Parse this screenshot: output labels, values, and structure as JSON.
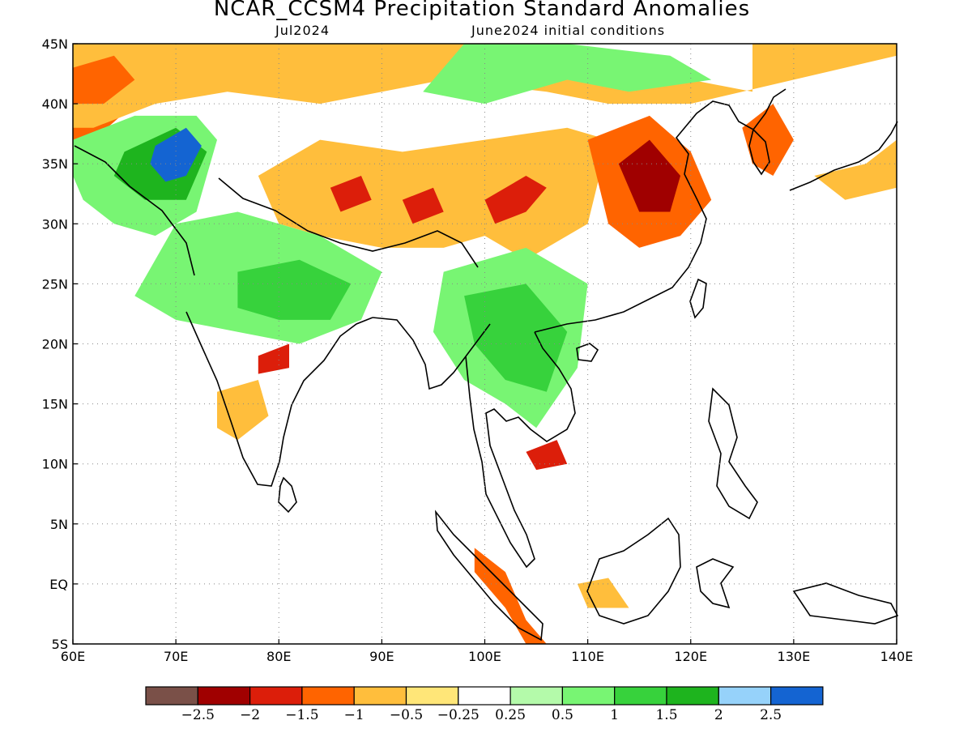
{
  "title": "NCAR_CCSM4 Precipitation Standard Anomalies",
  "subtitle_left": "Jul2024",
  "subtitle_right": "June2024 initial conditions",
  "map": {
    "lon_range": [
      60,
      140
    ],
    "lat_range": [
      -5,
      45
    ],
    "lon_ticks": [
      {
        "value": 60,
        "label": "60E"
      },
      {
        "value": 70,
        "label": "70E"
      },
      {
        "value": 80,
        "label": "80E"
      },
      {
        "value": 90,
        "label": "90E"
      },
      {
        "value": 100,
        "label": "100E"
      },
      {
        "value": 110,
        "label": "110E"
      },
      {
        "value": 120,
        "label": "120E"
      },
      {
        "value": 130,
        "label": "130E"
      },
      {
        "value": 140,
        "label": "140E"
      }
    ],
    "lat_ticks": [
      {
        "value": 45,
        "label": "45N"
      },
      {
        "value": 40,
        "label": "40N"
      },
      {
        "value": 35,
        "label": "35N"
      },
      {
        "value": 30,
        "label": "30N"
      },
      {
        "value": 25,
        "label": "25N"
      },
      {
        "value": 20,
        "label": "20N"
      },
      {
        "value": 15,
        "label": "15N"
      },
      {
        "value": 10,
        "label": "10N"
      },
      {
        "value": 5,
        "label": "5N"
      },
      {
        "value": 0,
        "label": "EQ"
      },
      {
        "value": -5,
        "label": "5S"
      }
    ],
    "grid": "dotted"
  },
  "colorbar": {
    "colors": [
      "#7a5048",
      "#a00000",
      "#dc1e0a",
      "#ff6400",
      "#ffbe3c",
      "#ffe678",
      "#ffffff",
      "#b4faaa",
      "#78f573",
      "#37d23c",
      "#1eb41e",
      "#96d2fa",
      "#1464d2"
    ],
    "labels": [
      "−2.5",
      "−2",
      "−1.5",
      "−1",
      "−0.5",
      "−0.25",
      "0.25",
      "0.5",
      "1",
      "1.5",
      "2",
      "2.5"
    ]
  },
  "anomaly_regions": [
    {
      "name": "northwest-dry",
      "level": -1,
      "points": [
        [
          60,
          45
        ],
        [
          70,
          45
        ],
        [
          72,
          43
        ],
        [
          66,
          40
        ],
        [
          62,
          37
        ],
        [
          60,
          37
        ]
      ]
    },
    {
      "name": "north-dry-band",
      "level": -0.5,
      "points": [
        [
          60,
          45
        ],
        [
          98,
          45
        ],
        [
          110,
          43
        ],
        [
          120,
          42
        ],
        [
          126,
          41
        ],
        [
          126,
          45
        ],
        [
          140,
          45
        ],
        [
          140,
          44
        ],
        [
          120,
          40
        ],
        [
          112,
          40
        ],
        [
          106,
          41
        ],
        [
          96,
          42
        ],
        [
          84,
          40
        ],
        [
          75,
          41
        ],
        [
          68,
          40
        ],
        [
          62,
          38
        ],
        [
          60,
          38
        ]
      ]
    },
    {
      "name": "northwest-core",
      "level": -1,
      "points": [
        [
          60,
          43
        ],
        [
          64,
          44
        ],
        [
          66,
          42
        ],
        [
          63,
          40
        ],
        [
          60,
          40
        ]
      ]
    },
    {
      "name": "afghan-wet",
      "level": 1,
      "points": [
        [
          60,
          37
        ],
        [
          66,
          39
        ],
        [
          72,
          39
        ],
        [
          74,
          37
        ],
        [
          72,
          31
        ],
        [
          68,
          29
        ],
        [
          64,
          30
        ],
        [
          61,
          32
        ],
        [
          60,
          34
        ]
      ]
    },
    {
      "name": "afghan-wetter",
      "level": 2,
      "points": [
        [
          65,
          36
        ],
        [
          70,
          38
        ],
        [
          73,
          36
        ],
        [
          71,
          32
        ],
        [
          67,
          32
        ],
        [
          64,
          34
        ]
      ]
    },
    {
      "name": "afghan-core",
      "level": 2.5,
      "points": [
        [
          68,
          36.5
        ],
        [
          71,
          38
        ],
        [
          72.5,
          36.5
        ],
        [
          71,
          34
        ],
        [
          69,
          33.5
        ],
        [
          67.5,
          35
        ]
      ]
    },
    {
      "name": "tibet-dry",
      "level": -0.5,
      "points": [
        [
          78,
          34
        ],
        [
          84,
          37
        ],
        [
          92,
          36
        ],
        [
          100,
          37
        ],
        [
          108,
          38
        ],
        [
          112,
          37
        ],
        [
          110,
          30
        ],
        [
          104,
          27
        ],
        [
          100,
          29
        ],
        [
          96,
          28
        ],
        [
          90,
          28
        ],
        [
          84,
          29
        ],
        [
          80,
          30
        ]
      ]
    },
    {
      "name": "tibet-dry-core-1",
      "level": -1.5,
      "points": [
        [
          85,
          33
        ],
        [
          88,
          34
        ],
        [
          89,
          32
        ],
        [
          86,
          31
        ]
      ]
    },
    {
      "name": "tibet-dry-core-2",
      "level": -1.5,
      "points": [
        [
          92,
          32
        ],
        [
          95,
          33
        ],
        [
          96,
          31
        ],
        [
          93,
          30
        ]
      ]
    },
    {
      "name": "china-dry-west",
      "level": -1.5,
      "points": [
        [
          100,
          32
        ],
        [
          104,
          34
        ],
        [
          106,
          33
        ],
        [
          104,
          31
        ],
        [
          101,
          30
        ]
      ]
    },
    {
      "name": "east-china-dry",
      "level": -1,
      "points": [
        [
          110,
          37
        ],
        [
          116,
          39
        ],
        [
          120,
          36
        ],
        [
          122,
          32
        ],
        [
          119,
          29
        ],
        [
          115,
          28
        ],
        [
          112,
          30
        ]
      ]
    },
    {
      "name": "east-china-core",
      "level": -2,
      "points": [
        [
          113,
          35
        ],
        [
          116,
          37
        ],
        [
          119,
          34
        ],
        [
          118,
          31
        ],
        [
          115,
          31
        ]
      ]
    },
    {
      "name": "korea-dry",
      "level": -1,
      "points": [
        [
          125,
          38
        ],
        [
          128,
          40
        ],
        [
          130,
          37
        ],
        [
          128,
          34
        ],
        [
          126,
          35
        ]
      ]
    },
    {
      "name": "japan-dry",
      "level": -0.5,
      "points": [
        [
          132,
          34
        ],
        [
          137,
          35
        ],
        [
          140,
          37
        ],
        [
          140,
          33
        ],
        [
          135,
          32
        ]
      ]
    },
    {
      "name": "mongolia-wet",
      "level": 1,
      "points": [
        [
          98,
          45
        ],
        [
          108,
          45
        ],
        [
          118,
          44
        ],
        [
          122,
          42
        ],
        [
          114,
          41
        ],
        [
          108,
          42
        ],
        [
          100,
          40
        ],
        [
          94,
          41
        ]
      ]
    },
    {
      "name": "north-india-wet",
      "level": 1,
      "points": [
        [
          70,
          30
        ],
        [
          76,
          31
        ],
        [
          84,
          29
        ],
        [
          90,
          26
        ],
        [
          88,
          22
        ],
        [
          82,
          20
        ],
        [
          76,
          21
        ],
        [
          70,
          22
        ],
        [
          66,
          24
        ]
      ]
    },
    {
      "name": "central-india-wet",
      "level": 1.5,
      "points": [
        [
          76,
          26
        ],
        [
          82,
          27
        ],
        [
          87,
          25
        ],
        [
          85,
          22
        ],
        [
          80,
          22
        ],
        [
          76,
          23
        ]
      ]
    },
    {
      "name": "indochina-wet",
      "level": 1,
      "points": [
        [
          96,
          26
        ],
        [
          104,
          28
        ],
        [
          110,
          25
        ],
        [
          109,
          18
        ],
        [
          105,
          13
        ],
        [
          102,
          15
        ],
        [
          98,
          17
        ],
        [
          95,
          21
        ]
      ]
    },
    {
      "name": "indochina-wetter",
      "level": 1.5,
      "points": [
        [
          98,
          24
        ],
        [
          104,
          25
        ],
        [
          108,
          21
        ],
        [
          106,
          16
        ],
        [
          102,
          17
        ],
        [
          99,
          20
        ]
      ]
    },
    {
      "name": "vietnam-dry",
      "level": -1.5,
      "points": [
        [
          104,
          11
        ],
        [
          107,
          12
        ],
        [
          108,
          10
        ],
        [
          105,
          9.5
        ]
      ]
    },
    {
      "name": "borneo-dry",
      "level": -0.5,
      "points": [
        [
          109,
          0
        ],
        [
          112,
          0.5
        ],
        [
          114,
          -2
        ],
        [
          110,
          -2
        ]
      ]
    },
    {
      "name": "sumatra-dry",
      "level": -1,
      "points": [
        [
          99,
          3
        ],
        [
          102,
          1
        ],
        [
          104,
          -3
        ],
        [
          106,
          -5
        ],
        [
          104,
          -5
        ],
        [
          102,
          -2
        ],
        [
          99,
          1
        ]
      ]
    },
    {
      "name": "south-india-dry",
      "level": -0.5,
      "points": [
        [
          74,
          16
        ],
        [
          78,
          17
        ],
        [
          79,
          14
        ],
        [
          76,
          12
        ],
        [
          74,
          13
        ]
      ]
    },
    {
      "name": "india-dry-spot",
      "level": -1.5,
      "points": [
        [
          78,
          19
        ],
        [
          81,
          20
        ],
        [
          81,
          18
        ],
        [
          78,
          17.5
        ]
      ]
    }
  ]
}
